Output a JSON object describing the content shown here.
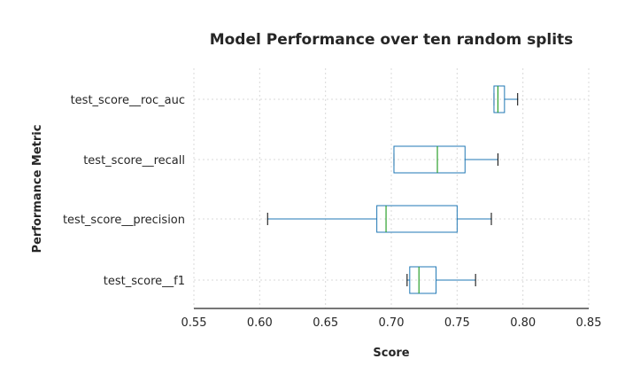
{
  "chart_data": {
    "type": "box",
    "title": "Model Performance over ten random splits",
    "xlabel": "Score",
    "ylabel": "Performance Metric",
    "xlim": [
      0.55,
      0.85
    ],
    "xticks": [
      0.55,
      0.6,
      0.65,
      0.7,
      0.75,
      0.8,
      0.85
    ],
    "xtick_labels": [
      "0.55",
      "0.60",
      "0.65",
      "0.70",
      "0.75",
      "0.80",
      "0.85"
    ],
    "grid": true,
    "categories": [
      "test_score__roc_auc",
      "test_score__recall",
      "test_score__precision",
      "test_score__f1"
    ],
    "boxes": [
      {
        "label": "test_score__roc_auc",
        "min": 0.778,
        "q1": 0.778,
        "median": 0.781,
        "q3": 0.786,
        "max": 0.796
      },
      {
        "label": "test_score__recall",
        "min": 0.702,
        "q1": 0.702,
        "median": 0.735,
        "q3": 0.756,
        "max": 0.781
      },
      {
        "label": "test_score__precision",
        "min": 0.606,
        "q1": 0.689,
        "median": 0.696,
        "q3": 0.75,
        "max": 0.776
      },
      {
        "label": "test_score__f1",
        "min": 0.712,
        "q1": 0.714,
        "median": 0.721,
        "q3": 0.734,
        "max": 0.764
      }
    ],
    "colors": {
      "box": "#1f77b4",
      "median": "#2ca02c",
      "cap": "#000000"
    }
  }
}
